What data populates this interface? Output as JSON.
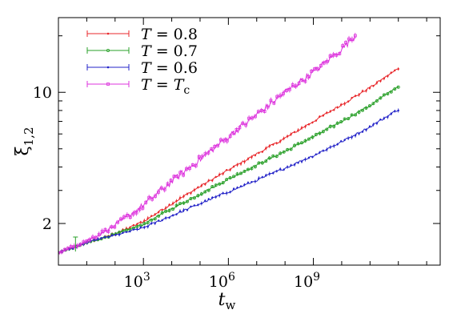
{
  "chart_data": {
    "type": "line",
    "xlabel": "t",
    "xlabel_sub": "w",
    "ylabel": "ξ",
    "ylabel_sub": "1,2",
    "xscale": "log",
    "yscale": "log",
    "xlim": [
      1,
      30000000000000.0
    ],
    "ylim": [
      1.2,
      25
    ],
    "xticks": [
      {
        "value": 1000,
        "base": "10",
        "exp": "3"
      },
      {
        "value": 1000000,
        "base": "10",
        "exp": "6"
      },
      {
        "value": 1000000000,
        "base": "10",
        "exp": "9"
      }
    ],
    "yticks": [
      {
        "value": 2,
        "label": "2"
      },
      {
        "value": 10,
        "label": "10"
      }
    ],
    "legend": {
      "position": "top-left",
      "entries": [
        {
          "prefix": "T",
          "value": " = 0.8"
        },
        {
          "prefix": "T",
          "value": " = 0.7"
        },
        {
          "prefix": "T",
          "value": " = 0.6"
        },
        {
          "prefix": "T",
          "value": " = ",
          "suffix_italic": "T",
          "suffix_sub": "c"
        }
      ]
    },
    "series": [
      {
        "name": "T = 0.8",
        "color": "#e8272b",
        "marker": "dot",
        "x": [
          1,
          4,
          10,
          30,
          100,
          1000,
          10000,
          100000,
          1000000,
          10000000,
          100000000,
          1000000000,
          10000000000,
          100000000000,
          1000000000000
        ],
        "y": [
          1.4,
          1.5,
          1.58,
          1.66,
          1.76,
          2.05,
          2.55,
          3.15,
          3.85,
          4.7,
          5.7,
          7.0,
          8.6,
          10.6,
          13.4
        ]
      },
      {
        "name": "T = 0.7",
        "color": "#2aa02a",
        "marker": "circle",
        "x": [
          1,
          4,
          10,
          30,
          100,
          1000,
          10000,
          100000,
          1000000,
          10000000,
          100000000,
          1000000000,
          10000000000,
          100000000000,
          1000000000000
        ],
        "y": [
          1.4,
          1.5,
          1.58,
          1.66,
          1.75,
          1.98,
          2.4,
          2.87,
          3.45,
          4.1,
          4.85,
          5.8,
          7.0,
          8.5,
          10.8
        ]
      },
      {
        "name": "T = 0.6",
        "color": "#2323c8",
        "marker": "dot",
        "x": [
          1,
          4,
          10,
          30,
          100,
          1000,
          10000,
          100000,
          1000000,
          10000000,
          100000000,
          1000000000,
          10000000000,
          100000000000,
          1000000000000
        ],
        "y": [
          1.4,
          1.5,
          1.58,
          1.66,
          1.73,
          1.9,
          2.2,
          2.55,
          2.95,
          3.4,
          3.95,
          4.6,
          5.45,
          6.55,
          8.1
        ]
      },
      {
        "name": "T = Tc",
        "color": "#dd33dd",
        "marker": "square",
        "x": [
          1,
          4,
          10,
          30,
          100,
          1000,
          10000,
          100000,
          1000000,
          10000000,
          100000000,
          1000000000,
          10000000000,
          30000000000
        ],
        "y": [
          1.4,
          1.52,
          1.62,
          1.76,
          1.95,
          2.5,
          3.35,
          4.4,
          5.8,
          7.6,
          10.0,
          12.8,
          17.0,
          20.0
        ]
      }
    ]
  }
}
